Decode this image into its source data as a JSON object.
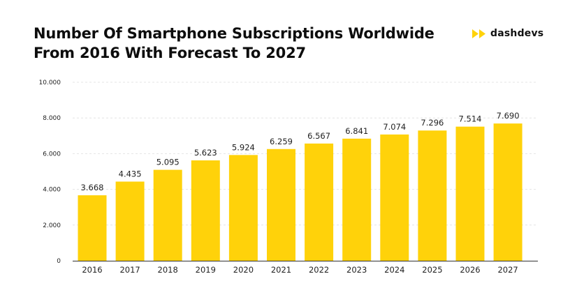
{
  "header": {
    "title_line1": "Number Of Smartphone Subscriptions Worldwide",
    "title_line2": "From 2016 With Forecast To 2027"
  },
  "brand": {
    "name": "dashdevs",
    "icon": "double-play-icon",
    "color": "#FFD20A"
  },
  "colors": {
    "bar": "#FFD20A",
    "grid": "#E4E4E4",
    "axis": "#333333"
  },
  "chart_data": {
    "type": "bar",
    "title": "Number Of Smartphone Subscriptions Worldwide From 2016 With Forecast To 2027",
    "xlabel": "",
    "ylabel": "",
    "categories": [
      "2016",
      "2017",
      "2018",
      "2019",
      "2020",
      "2021",
      "2022",
      "2023",
      "2024",
      "2025",
      "2026",
      "2027"
    ],
    "values": [
      3668,
      4435,
      5095,
      5623,
      5924,
      6259,
      6567,
      6841,
      7074,
      7296,
      7514,
      7690
    ],
    "value_labels": [
      "3.668",
      "4.435",
      "5.095",
      "5.623",
      "5.924",
      "6.259",
      "6.567",
      "6.841",
      "7.074",
      "7.296",
      "7.514",
      "7.690"
    ],
    "yticks": [
      0,
      2000,
      4000,
      6000,
      8000,
      10000
    ],
    "ytick_labels": [
      "0",
      "2.000",
      "4.000",
      "6.000",
      "8.000",
      "10.000"
    ],
    "ylim": [
      0,
      10000
    ],
    "grid": true,
    "legend": "none"
  }
}
